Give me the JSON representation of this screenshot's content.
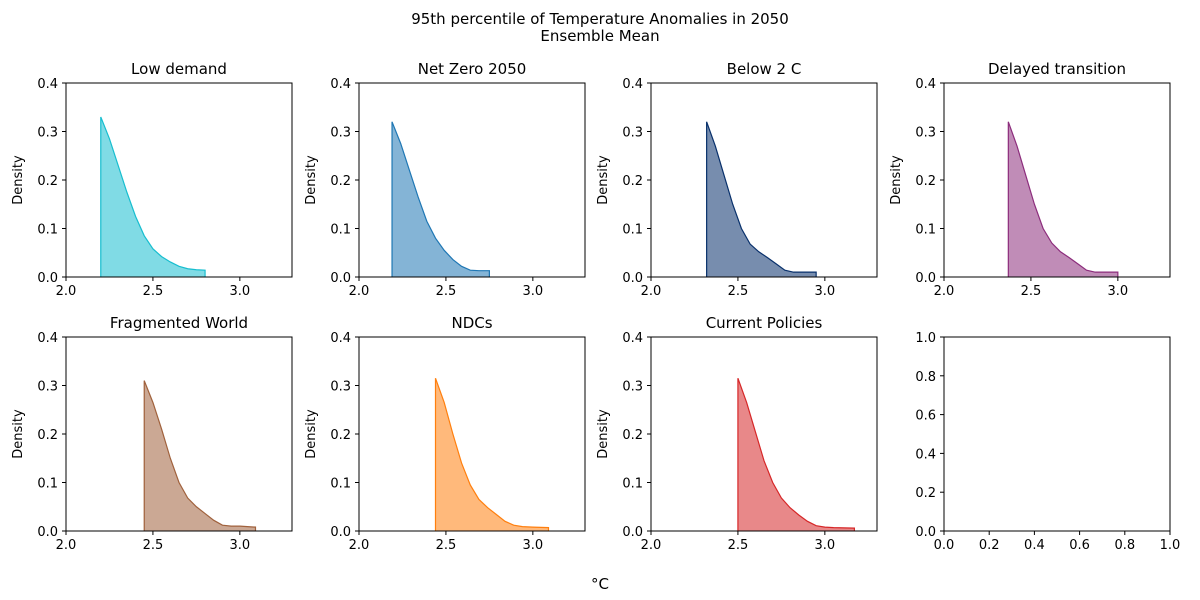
{
  "suptitle": [
    "95th percentile of Temperature Anomalies in 2050",
    "Ensemble Mean"
  ],
  "xlabel": "°C",
  "chart_data": [
    {
      "type": "area",
      "title": "Low demand",
      "color": "#17becf",
      "xlim": [
        2.0,
        3.3
      ],
      "ylim": [
        0.0,
        0.4
      ],
      "xticks": [
        "2.0",
        "2.5",
        "3.0"
      ],
      "yticks": [
        "0.0",
        "0.1",
        "0.2",
        "0.3",
        "0.4"
      ],
      "ylabel": "Density",
      "x": [
        2.2,
        2.25,
        2.3,
        2.35,
        2.4,
        2.45,
        2.5,
        2.55,
        2.6,
        2.65,
        2.7,
        2.75,
        2.8
      ],
      "y": [
        0.33,
        0.285,
        0.23,
        0.175,
        0.125,
        0.085,
        0.058,
        0.042,
        0.031,
        0.022,
        0.017,
        0.015,
        0.014
      ]
    },
    {
      "type": "area",
      "title": "Net Zero 2050",
      "color": "#1f77b4",
      "xlim": [
        2.0,
        3.3
      ],
      "ylim": [
        0.0,
        0.4
      ],
      "xticks": [
        "2.0",
        "2.5",
        "3.0"
      ],
      "yticks": [
        "0.0",
        "0.1",
        "0.2",
        "0.3",
        "0.4"
      ],
      "ylabel": "Density",
      "x": [
        2.19,
        2.24,
        2.29,
        2.34,
        2.39,
        2.44,
        2.49,
        2.54,
        2.59,
        2.64,
        2.69,
        2.75
      ],
      "y": [
        0.32,
        0.275,
        0.22,
        0.165,
        0.115,
        0.08,
        0.055,
        0.036,
        0.022,
        0.014,
        0.013,
        0.013
      ]
    },
    {
      "type": "area",
      "title": "Below 2 C",
      "color": "#08306b",
      "xlim": [
        2.0,
        3.3
      ],
      "ylim": [
        0.0,
        0.4
      ],
      "xticks": [
        "2.0",
        "2.5",
        "3.0"
      ],
      "yticks": [
        "0.0",
        "0.1",
        "0.2",
        "0.3",
        "0.4"
      ],
      "ylabel": "Density",
      "x": [
        2.32,
        2.37,
        2.42,
        2.47,
        2.52,
        2.57,
        2.62,
        2.67,
        2.72,
        2.77,
        2.82,
        2.87,
        2.95
      ],
      "y": [
        0.32,
        0.27,
        0.21,
        0.15,
        0.1,
        0.068,
        0.052,
        0.04,
        0.027,
        0.014,
        0.01,
        0.01,
        0.01
      ]
    },
    {
      "type": "area",
      "title": "Delayed transition",
      "color": "#8c2d7c",
      "xlim": [
        2.0,
        3.3
      ],
      "ylim": [
        0.0,
        0.4
      ],
      "xticks": [
        "2.0",
        "2.5",
        "3.0"
      ],
      "yticks": [
        "0.0",
        "0.1",
        "0.2",
        "0.3",
        "0.4"
      ],
      "ylabel": "Density",
      "x": [
        2.37,
        2.42,
        2.47,
        2.52,
        2.57,
        2.62,
        2.67,
        2.72,
        2.77,
        2.82,
        2.87,
        2.92,
        3.0
      ],
      "y": [
        0.32,
        0.27,
        0.21,
        0.15,
        0.1,
        0.07,
        0.052,
        0.04,
        0.027,
        0.014,
        0.01,
        0.01,
        0.01
      ]
    },
    {
      "type": "area",
      "title": "Fragmented World",
      "color": "#a0613c",
      "xlim": [
        2.0,
        3.3
      ],
      "ylim": [
        0.0,
        0.4
      ],
      "xticks": [
        "2.0",
        "2.5",
        "3.0"
      ],
      "yticks": [
        "0.0",
        "0.1",
        "0.2",
        "0.3",
        "0.4"
      ],
      "ylabel": "Density",
      "x": [
        2.45,
        2.5,
        2.55,
        2.6,
        2.65,
        2.7,
        2.75,
        2.8,
        2.85,
        2.9,
        2.95,
        3.0,
        3.09
      ],
      "y": [
        0.31,
        0.265,
        0.21,
        0.15,
        0.1,
        0.068,
        0.05,
        0.036,
        0.022,
        0.012,
        0.01,
        0.01,
        0.008
      ]
    },
    {
      "type": "area",
      "title": "NDCs",
      "color": "#ff7f0e",
      "xlim": [
        2.0,
        3.3
      ],
      "ylim": [
        0.0,
        0.4
      ],
      "xticks": [
        "2.0",
        "2.5",
        "3.0"
      ],
      "yticks": [
        "0.0",
        "0.1",
        "0.2",
        "0.3",
        "0.4"
      ],
      "ylabel": "Density",
      "x": [
        2.44,
        2.49,
        2.54,
        2.59,
        2.64,
        2.69,
        2.74,
        2.79,
        2.84,
        2.89,
        2.94,
        3.0,
        3.09
      ],
      "y": [
        0.315,
        0.265,
        0.2,
        0.14,
        0.095,
        0.065,
        0.048,
        0.034,
        0.02,
        0.012,
        0.009,
        0.008,
        0.007
      ]
    },
    {
      "type": "area",
      "title": "Current Policies",
      "color": "#d62728",
      "xlim": [
        2.0,
        3.3
      ],
      "ylim": [
        0.0,
        0.4
      ],
      "xticks": [
        "2.0",
        "2.5",
        "3.0"
      ],
      "yticks": [
        "0.0",
        "0.1",
        "0.2",
        "0.3",
        "0.4"
      ],
      "ylabel": "Density",
      "x": [
        2.5,
        2.55,
        2.6,
        2.65,
        2.7,
        2.75,
        2.8,
        2.85,
        2.9,
        2.95,
        3.0,
        3.05,
        3.17
      ],
      "y": [
        0.315,
        0.265,
        0.205,
        0.145,
        0.1,
        0.068,
        0.048,
        0.033,
        0.02,
        0.011,
        0.008,
        0.007,
        0.006
      ]
    },
    {
      "type": "area",
      "title": "",
      "color": "#000000",
      "xlim": [
        0.0,
        1.0
      ],
      "ylim": [
        0.0,
        1.0
      ],
      "xticks": [
        "0.0",
        "0.2",
        "0.4",
        "0.6",
        "0.8",
        "1.0"
      ],
      "yticks": [
        "0.0",
        "0.2",
        "0.4",
        "0.6",
        "0.8",
        "1.0"
      ],
      "ylabel": "",
      "x": [],
      "y": []
    }
  ]
}
